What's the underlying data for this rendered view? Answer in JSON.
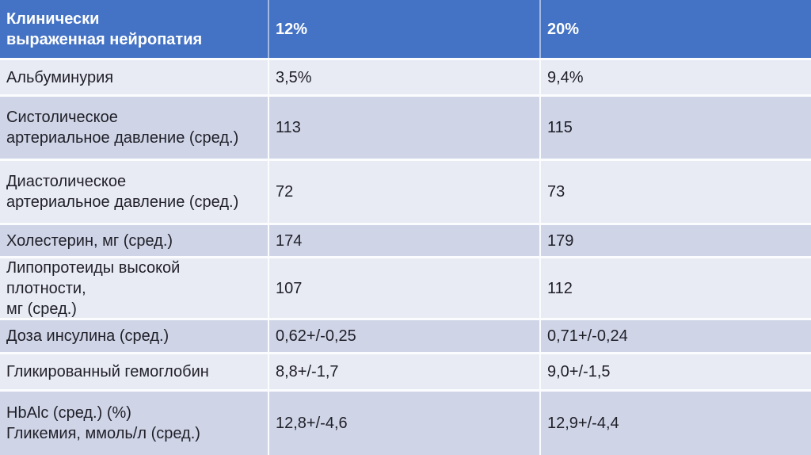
{
  "slide": {
    "table": {
      "header": {
        "label": "Клинически\nвыраженная нейропатия",
        "col_12": "12%",
        "col_20": "20%"
      },
      "rows": [
        {
          "label": "Альбуминурия",
          "val_12": "3,5%",
          "val_20": "9,4%"
        },
        {
          "label": "Систолическое\nартериальное давление (сред.)",
          "val_12": "113",
          "val_20": "115"
        },
        {
          "label": "Диастолическое\nартериальное давление (сред.)",
          "val_12": "72",
          "val_20": "73"
        },
        {
          "label": "Холестерин, мг (сред.)",
          "val_12": "174",
          "val_20": "179"
        },
        {
          "label": "Липопротеиды высокой плотности,\nмг (сред.)",
          "val_12": "107",
          "val_20": "112"
        },
        {
          "label": "Доза инсулина (сред.)",
          "val_12": "0,62+/-0,25",
          "val_20": "0,71+/-0,24"
        },
        {
          "label": "Гликированный гемоглобин",
          "val_12": "8,8+/-1,7",
          "val_20": "9,0+/-1,5"
        },
        {
          "label": "HbAlc (сред.) (%)\nГликемия, ммоль/л (сред.)",
          "val_12": "12,8+/-4,6",
          "val_20": "12,9+/-4,4"
        }
      ]
    },
    "colors": {
      "header_bg": "#4472C4",
      "header_text": "#FFFFFF",
      "band_dark": "#CFD5E7",
      "band_light": "#E9EBF4",
      "grid_line": "#FBFCFE",
      "body_text": "#1F1F28"
    }
  }
}
